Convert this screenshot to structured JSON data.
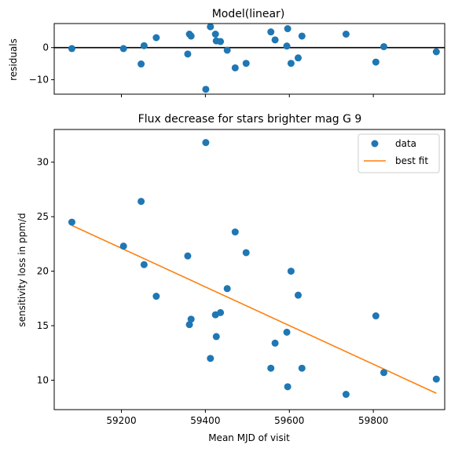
{
  "chart_data": [
    {
      "type": "scatter",
      "title": "Model(linear)",
      "xlabel": "",
      "ylabel": "residuals",
      "xlim": [
        59040,
        59970
      ],
      "ylim": [
        -14.5,
        7.5
      ],
      "yticks": [
        0,
        -10
      ],
      "xticks": [
        59200,
        59400,
        59600,
        59800
      ],
      "reference_line_y": 0,
      "x_ticklabels_visible": false,
      "series": [
        {
          "x": [
            59082,
            59205,
            59247,
            59254,
            59283,
            59358,
            59362,
            59366,
            59401,
            59412,
            59424,
            59426,
            59436,
            59452,
            59471,
            59497,
            59556,
            59566,
            59594,
            59596,
            59604,
            59621,
            59630,
            59735,
            59806,
            59825,
            59950
          ],
          "y": [
            -0.3,
            -0.3,
            -5.1,
            0.6,
            3.1,
            -2.0,
            4.2,
            3.6,
            -13.0,
            6.5,
            4.2,
            2.1,
            1.9,
            -0.8,
            -6.3,
            -4.9,
            4.9,
            2.4,
            0.5,
            5.9,
            -4.9,
            -3.2,
            3.6,
            4.2,
            -4.5,
            0.3,
            -1.3
          ]
        }
      ],
      "colors": {
        "points": "#1f77b4",
        "reference_line": "#000000"
      }
    },
    {
      "type": "scatter",
      "title": "Flux decrease for stars brighter mag G 9",
      "xlabel": "Mean MJD of visit",
      "ylabel": "sensitivity loss in ppm/d",
      "xlim": [
        59040,
        59970
      ],
      "ylim": [
        7.3,
        33.0
      ],
      "xticks": [
        59200,
        59400,
        59600,
        59800
      ],
      "yticks": [
        10,
        15,
        20,
        25,
        30
      ],
      "legend_position": "top-right",
      "series": [
        {
          "name": "data",
          "x": [
            59082,
            59205,
            59247,
            59254,
            59283,
            59358,
            59362,
            59366,
            59401,
            59412,
            59424,
            59426,
            59436,
            59452,
            59471,
            59497,
            59556,
            59566,
            59594,
            59596,
            59604,
            59621,
            59630,
            59735,
            59806,
            59825,
            59950
          ],
          "y": [
            24.5,
            22.3,
            26.4,
            20.6,
            17.7,
            21.4,
            15.1,
            15.6,
            31.8,
            12.0,
            16.0,
            14.0,
            16.2,
            18.4,
            23.6,
            21.7,
            11.1,
            13.4,
            14.4,
            9.4,
            20.0,
            17.8,
            11.1,
            8.7,
            15.9,
            10.7,
            10.1
          ]
        },
        {
          "name": "best fit",
          "type": "line",
          "x": [
            59082,
            59950
          ],
          "y": [
            24.2,
            8.8
          ]
        }
      ],
      "colors": {
        "points": "#1f77b4",
        "fit_line": "#ff7f0e"
      }
    }
  ]
}
